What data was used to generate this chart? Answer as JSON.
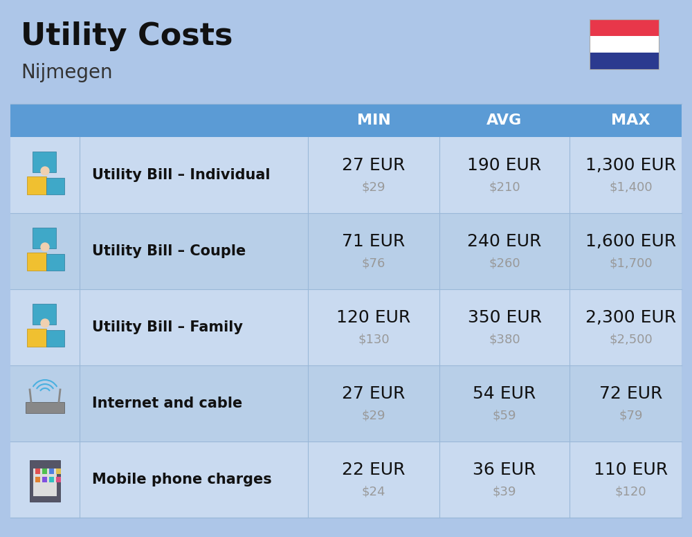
{
  "title": "Utility Costs",
  "subtitle": "Nijmegen",
  "bg_color": "#adc6e8",
  "header_bg_color": "#5b9bd5",
  "row_bg_colors": [
    "#c9daf0",
    "#b8cfe8"
  ],
  "header_text_color": "#ffffff",
  "cell_text_color": "#111111",
  "usd_text_color": "#999999",
  "col_headers": [
    "MIN",
    "AVG",
    "MAX"
  ],
  "rows": [
    {
      "label": "Utility Bill – Individual",
      "min_eur": "27 EUR",
      "min_usd": "$29",
      "avg_eur": "190 EUR",
      "avg_usd": "$210",
      "max_eur": "1,300 EUR",
      "max_usd": "$1,400",
      "icon": "⚡"
    },
    {
      "label": "Utility Bill – Couple",
      "min_eur": "71 EUR",
      "min_usd": "$76",
      "avg_eur": "240 EUR",
      "avg_usd": "$260",
      "max_eur": "1,600 EUR",
      "max_usd": "$1,700",
      "icon": "⚡"
    },
    {
      "label": "Utility Bill – Family",
      "min_eur": "120 EUR",
      "min_usd": "$130",
      "avg_eur": "350 EUR",
      "avg_usd": "$380",
      "max_eur": "2,300 EUR",
      "max_usd": "$2,500",
      "icon": "⚡"
    },
    {
      "label": "Internet and cable",
      "min_eur": "27 EUR",
      "min_usd": "$29",
      "avg_eur": "54 EUR",
      "avg_usd": "$59",
      "max_eur": "72 EUR",
      "max_usd": "$79",
      "icon": "📡"
    },
    {
      "label": "Mobile phone charges",
      "min_eur": "22 EUR",
      "min_usd": "$24",
      "avg_eur": "36 EUR",
      "avg_usd": "$39",
      "max_eur": "110 EUR",
      "max_usd": "$120",
      "icon": "📱"
    }
  ],
  "flag_colors": [
    "#e8374a",
    "#ffffff",
    "#2b3a8f"
  ],
  "title_fontsize": 32,
  "subtitle_fontsize": 20,
  "header_fontsize": 16,
  "label_fontsize": 15,
  "value_fontsize": 18,
  "usd_fontsize": 13
}
